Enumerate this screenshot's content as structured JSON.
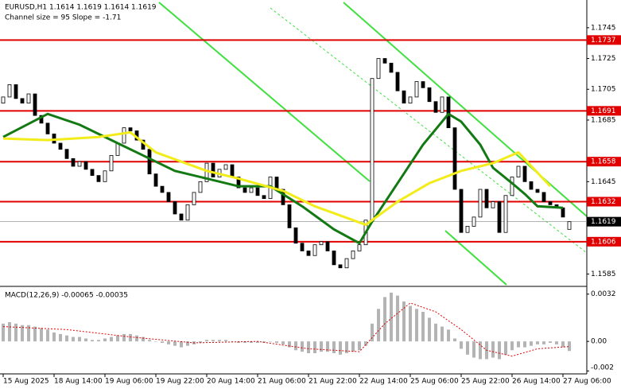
{
  "chart_data": {
    "type": "candlestick",
    "header": "EURUSD,H1  1.1614 1.1619 1.1614 1.1619",
    "subheader": "Channel size = 95 Slope = -1.71",
    "categories": [
      "15 Aug 2025",
      null,
      null,
      null,
      null,
      null,
      null,
      null,
      "18 Aug 14:00",
      null,
      null,
      null,
      null,
      null,
      null,
      null,
      "19 Aug 06:00",
      null,
      null,
      null,
      null,
      null,
      null,
      null,
      "19 Aug 22:00",
      null,
      null,
      null,
      null,
      null,
      null,
      null,
      "20 Aug 14:00",
      null,
      null,
      null,
      null,
      null,
      null,
      null,
      "21 Aug 06:00",
      null,
      null,
      null,
      null,
      null,
      null,
      null,
      "21 Aug 22:00",
      null,
      null,
      null,
      null,
      null,
      null,
      null,
      "22 Aug 14:00",
      null,
      null,
      null,
      null,
      null,
      null,
      null,
      "25 Aug 06:00",
      null,
      null,
      null,
      null,
      null,
      null,
      null,
      "25 Aug 22:00",
      null,
      null,
      null,
      null,
      null,
      null,
      null,
      "26 Aug 14:00",
      null,
      null,
      null,
      null,
      null,
      null,
      null,
      "27 Aug 06:00",
      null
    ],
    "open": [
      1.1696,
      1.17,
      1.1708,
      1.1699,
      1.1696,
      1.1702,
      1.1688,
      1.1683,
      1.1676,
      1.167,
      1.1666,
      1.166,
      1.1655,
      1.1658,
      1.1653,
      1.1649,
      1.1645,
      1.1652,
      1.1662,
      1.167,
      1.168,
      1.1678,
      1.1672,
      1.1666,
      1.165,
      1.1642,
      1.1638,
      1.1632,
      1.1624,
      1.162,
      1.163,
      1.1638,
      1.1645,
      1.1657,
      1.1648,
      1.1653,
      1.1656,
      1.1648,
      1.1641,
      1.1638,
      1.1641,
      1.1636,
      1.1634,
      1.1648,
      1.164,
      1.163,
      1.1615,
      1.1605,
      1.16,
      1.1597,
      1.1604,
      1.1606,
      1.16,
      1.1591,
      1.1589,
      1.1595,
      1.16,
      1.1604,
      1.162,
      1.1712,
      1.1725,
      1.1722,
      1.1716,
      1.1704,
      1.1696,
      1.17,
      1.171,
      1.1706,
      1.1697,
      1.169,
      1.17,
      1.168,
      1.164,
      1.1612,
      1.1616,
      1.1622,
      1.164,
      1.1628,
      1.1632,
      1.1612,
      1.1636,
      1.1648,
      1.1655,
      1.1645,
      1.164,
      1.1638,
      1.1632,
      1.163,
      1.1628,
      1.1614
    ],
    "close": [
      1.17,
      1.1708,
      1.1699,
      1.1696,
      1.1702,
      1.1688,
      1.1683,
      1.1676,
      1.167,
      1.1666,
      1.166,
      1.1655,
      1.1658,
      1.1653,
      1.1649,
      1.1645,
      1.1652,
      1.1662,
      1.167,
      1.168,
      1.1678,
      1.1672,
      1.1666,
      1.165,
      1.1642,
      1.1638,
      1.1632,
      1.1624,
      1.162,
      1.163,
      1.1638,
      1.1645,
      1.1657,
      1.1648,
      1.1653,
      1.1656,
      1.1648,
      1.1641,
      1.1638,
      1.1641,
      1.1636,
      1.1634,
      1.1648,
      1.164,
      1.163,
      1.1615,
      1.1605,
      1.16,
      1.1597,
      1.1604,
      1.1606,
      1.16,
      1.1591,
      1.1589,
      1.1595,
      1.16,
      1.1604,
      1.162,
      1.1712,
      1.1725,
      1.1722,
      1.1716,
      1.1704,
      1.1696,
      1.17,
      1.171,
      1.1706,
      1.1697,
      1.169,
      1.17,
      1.168,
      1.164,
      1.1612,
      1.1616,
      1.1622,
      1.164,
      1.1628,
      1.1632,
      1.1612,
      1.1636,
      1.1648,
      1.1655,
      1.1645,
      1.164,
      1.1638,
      1.1632,
      1.163,
      1.1628,
      1.1622,
      1.1619
    ],
    "up_color": "#ffffff",
    "down_color": "#000000",
    "ylim": [
      1.1578,
      1.1763
    ],
    "yticks": [
      1.1585,
      1.1645,
      1.1685,
      1.1705,
      1.1725,
      1.1745
    ],
    "lines": [
      {
        "color": "#137a13",
        "x": [
          0,
          7,
          12,
          17,
          22,
          27,
          32,
          37,
          42,
          47,
          52,
          56,
          58,
          62,
          66,
          70,
          72,
          75,
          77,
          80,
          82,
          84,
          88
        ],
        "values": [
          1.1674,
          1.1689,
          1.1682,
          1.1672,
          1.1662,
          1.1652,
          1.1647,
          1.1642,
          1.1642,
          1.1629,
          1.1614,
          1.1605,
          1.1619,
          1.1644,
          1.1669,
          1.1689,
          1.1684,
          1.1669,
          1.1654,
          1.1644,
          1.1637,
          1.1629,
          1.1628
        ]
      },
      {
        "color": "#f2ec1a",
        "x": [
          0,
          7,
          15,
          20,
          24,
          32,
          37,
          44,
          49,
          57,
          62,
          67,
          72,
          77,
          81,
          86
        ],
        "values": [
          1.1673,
          1.1672,
          1.1674,
          1.1677,
          1.1664,
          1.1652,
          1.1647,
          1.1639,
          1.1629,
          1.1617,
          1.1632,
          1.1644,
          1.1652,
          1.1657,
          1.1664,
          1.1642
        ]
      }
    ],
    "levels": {
      "color": "#e00000",
      "values": [
        1.1737,
        1.1691,
        1.1658,
        1.1632,
        1.1606
      ]
    },
    "current_price": 1.1619,
    "macd": {
      "title": "MACD(12,26,9) -0.00065 -0.00035",
      "color": "#b4b4b4",
      "histogram": [
        0.0012,
        0.0013,
        0.0012,
        0.0011,
        0.0011,
        0.001,
        0.0009,
        0.0008,
        0.0006,
        0.0005,
        0.0004,
        0.0003,
        0.0003,
        0.0002,
        0.0001,
        0.0001,
        0.0002,
        0.0003,
        0.0004,
        0.0005,
        0.0005,
        0.0004,
        0.0003,
        0.0001,
        0,
        -0.0001,
        -0.0002,
        -0.0003,
        -0.0004,
        -0.0003,
        -0.0002,
        -0.0001,
        0.0001,
        0.0001,
        0.0001,
        0.0001,
        0,
        -0.0001,
        -0.0001,
        -0.0001,
        -0.0001,
        -0.0001,
        0,
        -0.0001,
        -0.0002,
        -0.0004,
        -0.0006,
        -0.0007,
        -0.0008,
        -0.0008,
        -0.0007,
        -0.0007,
        -0.0008,
        -0.0009,
        -0.0008,
        -0.0007,
        -0.0006,
        -0.0003,
        0.0012,
        0.0022,
        0.003,
        0.0033,
        0.0031,
        0.0027,
        0.0024,
        0.0022,
        0.002,
        0.0016,
        0.0012,
        0.001,
        0.0008,
        0.0002,
        -0.0005,
        -0.0009,
        -0.0011,
        -0.0012,
        -0.0012,
        -0.0011,
        -0.0012,
        -0.0009,
        -0.0006,
        -0.0004,
        -0.0004,
        -0.0003,
        -0.0002,
        -0.0002,
        -0.0001,
        -0.0002,
        -0.0004,
        -0.00065
      ],
      "signal": {
        "color": "#e00000",
        "x": [
          0,
          10,
          20,
          30,
          40,
          48,
          56,
          60,
          64,
          68,
          72,
          76,
          80,
          84,
          89
        ],
        "values": [
          0.001,
          0.0008,
          0.0003,
          -0.0001,
          0,
          -0.0005,
          -0.0007,
          0.0012,
          0.0026,
          0.002,
          0.0008,
          -0.0006,
          -0.001,
          -0.0005,
          -0.00035
        ]
      },
      "ylim": [
        -0.0022,
        0.0034
      ],
      "yticks": [
        0.0032,
        {
          "value": 0,
          "label": "0.00"
        },
        -0.002
      ]
    }
  }
}
